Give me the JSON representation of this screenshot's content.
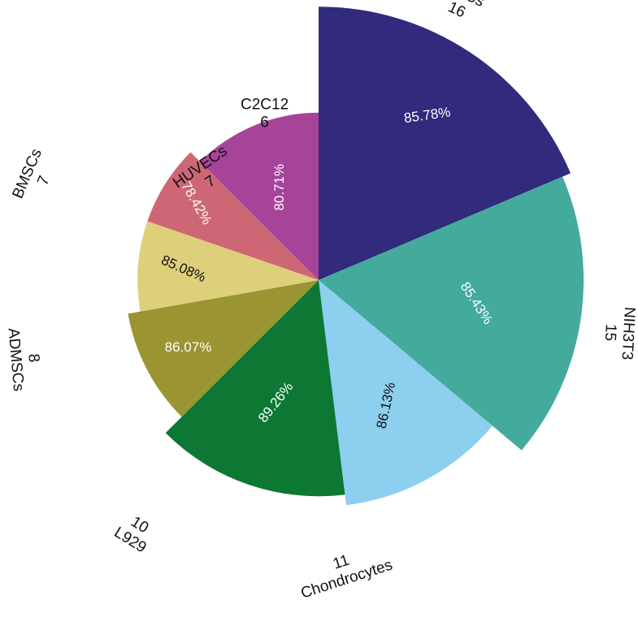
{
  "chart_data": {
    "type": "polar-area",
    "title": "",
    "sectors": [
      {
        "name": "MSCs",
        "count": 16,
        "value": "85.78%",
        "color": "#312a7d"
      },
      {
        "name": "NIH3T3",
        "count": 15,
        "value": "85.43%",
        "color": "#43aa9c"
      },
      {
        "name": "Chondrocytes",
        "count": 11,
        "value": "86.13%",
        "color": "#8ccfef"
      },
      {
        "name": "L929",
        "count": 10,
        "value": "89.26%",
        "color": "#0c7833"
      },
      {
        "name": "ADMSCs",
        "count": 8,
        "value": "86.07%",
        "color": "#9a9532"
      },
      {
        "name": "BMSCs",
        "count": 7,
        "value": "85.08%",
        "color": "#decf7b"
      },
      {
        "name": "HUVECs",
        "count": 7,
        "value": "78.42%",
        "color": "#cd6775"
      },
      {
        "name": "C2C12",
        "count": 6,
        "value": "80.71%",
        "color": "#a6449a"
      }
    ]
  }
}
